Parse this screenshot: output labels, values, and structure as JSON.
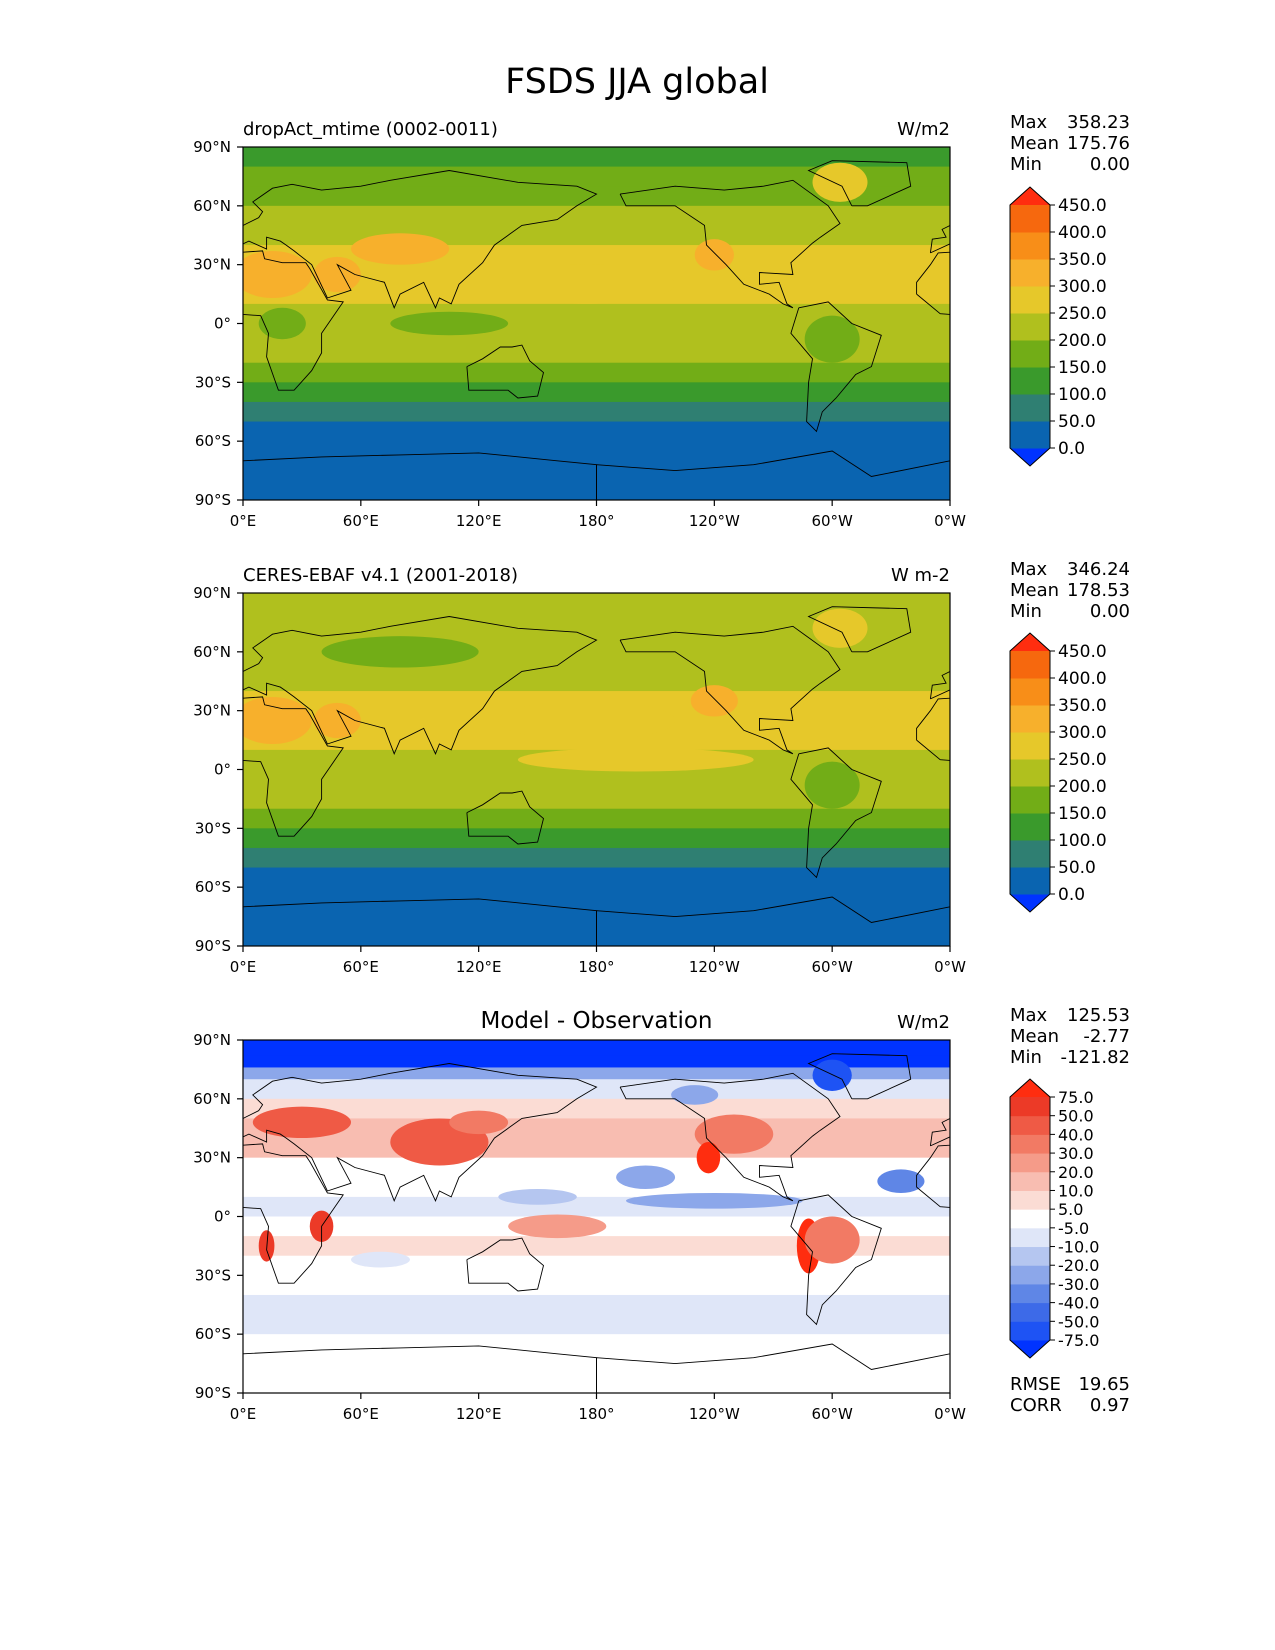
{
  "figure": {
    "title": "FSDS JJA global"
  },
  "chart_data": [
    {
      "type": "heatmap",
      "title": "dropAct_mtime (0002-0011)",
      "units": "W/m2",
      "xlim": [
        0,
        360
      ],
      "ylim": [
        -90,
        90
      ],
      "x_ticks": [
        "0°E",
        "60°E",
        "120°E",
        "180°",
        "120°W",
        "60°W",
        "0°W"
      ],
      "y_ticks": [
        "90°N",
        "60°N",
        "30°N",
        "0°",
        "30°S",
        "60°S",
        "90°S"
      ],
      "stats": [
        {
          "label": "Max",
          "value": "358.23"
        },
        {
          "label": "Mean",
          "value": "175.76"
        },
        {
          "label": "Min",
          "value": "0.00"
        }
      ],
      "colorbar": {
        "levels": [
          "0.0",
          "50.0",
          "100.0",
          "150.0",
          "200.0",
          "250.0",
          "300.0",
          "350.0",
          "400.0",
          "450.0"
        ],
        "colors": [
          "#0033ff",
          "#0a64b0",
          "#2f7f72",
          "#3a9a2c",
          "#72ad17",
          "#b0c01e",
          "#e6c82a",
          "#f7b02c",
          "#f88e18",
          "#f6680e",
          "#ff2d0f"
        ]
      },
      "zonal_mean": [
        {
          "lat": 90,
          "value": 140
        },
        {
          "lat": 80,
          "value": 150
        },
        {
          "lat": 70,
          "value": 170
        },
        {
          "lat": 60,
          "value": 200
        },
        {
          "lat": 50,
          "value": 240
        },
        {
          "lat": 40,
          "value": 270
        },
        {
          "lat": 30,
          "value": 280
        },
        {
          "lat": 20,
          "value": 270
        },
        {
          "lat": 10,
          "value": 230
        },
        {
          "lat": 0,
          "value": 210
        },
        {
          "lat": -10,
          "value": 205
        },
        {
          "lat": -20,
          "value": 180
        },
        {
          "lat": -30,
          "value": 140
        },
        {
          "lat": -40,
          "value": 90
        },
        {
          "lat": -50,
          "value": 40
        },
        {
          "lat": -60,
          "value": 15
        },
        {
          "lat": -70,
          "value": 10
        },
        {
          "lat": -80,
          "value": 2
        },
        {
          "lat": -90,
          "value": 0
        }
      ],
      "anomalies": [
        {
          "lon": 15,
          "lat": 25,
          "rx": 20,
          "ry": 12,
          "value": 330
        },
        {
          "lon": 48,
          "lat": 25,
          "rx": 12,
          "ry": 9,
          "value": 320
        },
        {
          "lon": 80,
          "lat": 38,
          "rx": 25,
          "ry": 8,
          "value": 330
        },
        {
          "lon": 240,
          "lat": 35,
          "rx": 10,
          "ry": 8,
          "value": 330
        },
        {
          "lon": 304,
          "lat": 72,
          "rx": 14,
          "ry": 10,
          "value": 280
        },
        {
          "lon": 175,
          "lat": 20,
          "rx": 45,
          "ry": 10,
          "value": 275
        },
        {
          "lon": 290,
          "lat": 28,
          "rx": 40,
          "ry": 10,
          "value": 275
        },
        {
          "lon": 300,
          "lat": -8,
          "rx": 14,
          "ry": 12,
          "value": 180
        },
        {
          "lon": 20,
          "lat": 0,
          "rx": 12,
          "ry": 8,
          "value": 170
        },
        {
          "lon": 105,
          "lat": 0,
          "rx": 30,
          "ry": 6,
          "value": 175
        }
      ]
    },
    {
      "type": "heatmap",
      "title": "CERES-EBAF v4.1 (2001-2018)",
      "units": "W m-2",
      "xlim": [
        0,
        360
      ],
      "ylim": [
        -90,
        90
      ],
      "x_ticks": [
        "0°E",
        "60°E",
        "120°E",
        "180°",
        "120°W",
        "60°W",
        "0°W"
      ],
      "y_ticks": [
        "90°N",
        "60°N",
        "30°N",
        "0°",
        "30°S",
        "60°S",
        "90°S"
      ],
      "stats": [
        {
          "label": "Max",
          "value": "346.24"
        },
        {
          "label": "Mean",
          "value": "178.53"
        },
        {
          "label": "Min",
          "value": "0.00"
        }
      ],
      "colorbar": {
        "levels": [
          "0.0",
          "50.0",
          "100.0",
          "150.0",
          "200.0",
          "250.0",
          "300.0",
          "350.0",
          "400.0",
          "450.0"
        ],
        "colors": [
          "#0033ff",
          "#0a64b0",
          "#2f7f72",
          "#3a9a2c",
          "#72ad17",
          "#b0c01e",
          "#e6c82a",
          "#f7b02c",
          "#f88e18",
          "#f6680e",
          "#ff2d0f"
        ]
      },
      "zonal_mean": [
        {
          "lat": 90,
          "value": 230
        },
        {
          "lat": 80,
          "value": 225
        },
        {
          "lat": 70,
          "value": 210
        },
        {
          "lat": 60,
          "value": 205
        },
        {
          "lat": 50,
          "value": 220
        },
        {
          "lat": 40,
          "value": 265
        },
        {
          "lat": 30,
          "value": 275
        },
        {
          "lat": 20,
          "value": 260
        },
        {
          "lat": 10,
          "value": 225
        },
        {
          "lat": 0,
          "value": 215
        },
        {
          "lat": -10,
          "value": 210
        },
        {
          "lat": -20,
          "value": 185
        },
        {
          "lat": -30,
          "value": 145
        },
        {
          "lat": -40,
          "value": 95
        },
        {
          "lat": -50,
          "value": 40
        },
        {
          "lat": -60,
          "value": 15
        },
        {
          "lat": -70,
          "value": 10
        },
        {
          "lat": -80,
          "value": 2
        },
        {
          "lat": -90,
          "value": 0
        }
      ],
      "anomalies": [
        {
          "lon": 15,
          "lat": 25,
          "rx": 20,
          "ry": 12,
          "value": 320
        },
        {
          "lon": 48,
          "lat": 25,
          "rx": 12,
          "ry": 9,
          "value": 310
        },
        {
          "lon": 304,
          "lat": 72,
          "rx": 14,
          "ry": 10,
          "value": 290
        },
        {
          "lon": 175,
          "lat": 25,
          "rx": 45,
          "ry": 10,
          "value": 275
        },
        {
          "lon": 290,
          "lat": 28,
          "rx": 40,
          "ry": 10,
          "value": 280
        },
        {
          "lon": 240,
          "lat": 35,
          "rx": 12,
          "ry": 8,
          "value": 305
        },
        {
          "lon": 80,
          "lat": 60,
          "rx": 40,
          "ry": 8,
          "value": 190
        },
        {
          "lon": 200,
          "lat": 5,
          "rx": 60,
          "ry": 6,
          "value": 260
        },
        {
          "lon": 300,
          "lat": -8,
          "rx": 14,
          "ry": 12,
          "value": 180
        }
      ]
    },
    {
      "type": "heatmap",
      "title": "Model - Observation",
      "units": "W/m2",
      "xlim": [
        0,
        360
      ],
      "ylim": [
        -90,
        90
      ],
      "x_ticks": [
        "0°E",
        "60°E",
        "120°E",
        "180°",
        "120°W",
        "60°W",
        "0°W"
      ],
      "y_ticks": [
        "90°N",
        "60°N",
        "30°N",
        "0°",
        "30°S",
        "60°S",
        "90°S"
      ],
      "stats": [
        {
          "label": "Max",
          "value": "125.53"
        },
        {
          "label": "Mean",
          "value": "-2.77"
        },
        {
          "label": "Min",
          "value": "-121.82"
        }
      ],
      "extra_stats": [
        {
          "label": "RMSE",
          "value": "19.65"
        },
        {
          "label": "CORR",
          "value": "0.97"
        }
      ],
      "colorbar": {
        "levels": [
          "-75.0",
          "-50.0",
          "-40.0",
          "-30.0",
          "-20.0",
          "-10.0",
          "-5.0",
          "5.0",
          "10.0",
          "20.0",
          "30.0",
          "40.0",
          "50.0",
          "75.0"
        ],
        "colors": [
          "#0033ff",
          "#1e53f4",
          "#3d6ae8",
          "#5f86e6",
          "#8ca7ea",
          "#b5c6f0",
          "#dfe6f8",
          "#ffffff",
          "#fbdcd4",
          "#f8bdb1",
          "#f59b89",
          "#f27a64",
          "#ef5a45",
          "#ec3a27",
          "#ff2d0f"
        ]
      },
      "zonal_mean": [
        {
          "lat": 90,
          "value": -90
        },
        {
          "lat": 82,
          "value": -80
        },
        {
          "lat": 76,
          "value": -25
        },
        {
          "lat": 70,
          "value": -8
        },
        {
          "lat": 60,
          "value": 8
        },
        {
          "lat": 50,
          "value": 15
        },
        {
          "lat": 40,
          "value": 12
        },
        {
          "lat": 30,
          "value": 4
        },
        {
          "lat": 20,
          "value": 0
        },
        {
          "lat": 10,
          "value": -6
        },
        {
          "lat": 0,
          "value": -3
        },
        {
          "lat": -10,
          "value": 6
        },
        {
          "lat": -20,
          "value": 2
        },
        {
          "lat": -30,
          "value": 0
        },
        {
          "lat": -40,
          "value": -9
        },
        {
          "lat": -50,
          "value": -6
        },
        {
          "lat": -60,
          "value": 0
        },
        {
          "lat": -90,
          "value": 0
        }
      ],
      "anomalies": [
        {
          "lon": 30,
          "lat": 48,
          "rx": 25,
          "ry": 8,
          "value": 45
        },
        {
          "lon": 100,
          "lat": 38,
          "rx": 25,
          "ry": 12,
          "value": 45
        },
        {
          "lon": 120,
          "lat": 48,
          "rx": 15,
          "ry": 6,
          "value": 35
        },
        {
          "lon": 250,
          "lat": 42,
          "rx": 20,
          "ry": 10,
          "value": 35
        },
        {
          "lon": 237,
          "lat": 30,
          "rx": 6,
          "ry": 8,
          "value": 80
        },
        {
          "lon": 288,
          "lat": -15,
          "rx": 6,
          "ry": 14,
          "value": 80
        },
        {
          "lon": 300,
          "lat": -12,
          "rx": 14,
          "ry": 12,
          "value": 30
        },
        {
          "lon": 40,
          "lat": -5,
          "rx": 6,
          "ry": 8,
          "value": 55
        },
        {
          "lon": 12,
          "lat": -15,
          "rx": 4,
          "ry": 8,
          "value": 55
        },
        {
          "lon": 160,
          "lat": -5,
          "rx": 25,
          "ry": 6,
          "value": 25
        },
        {
          "lon": 150,
          "lat": 10,
          "rx": 20,
          "ry": 4,
          "value": -15
        },
        {
          "lon": 240,
          "lat": 8,
          "rx": 45,
          "ry": 4,
          "value": -25
        },
        {
          "lon": 335,
          "lat": 18,
          "rx": 12,
          "ry": 6,
          "value": -35
        },
        {
          "lon": 205,
          "lat": 20,
          "rx": 15,
          "ry": 6,
          "value": -25
        },
        {
          "lon": 70,
          "lat": -22,
          "rx": 15,
          "ry": 4,
          "value": -10
        },
        {
          "lon": 300,
          "lat": 72,
          "rx": 10,
          "ry": 8,
          "value": -60
        },
        {
          "lon": 230,
          "lat": 62,
          "rx": 12,
          "ry": 5,
          "value": -30
        }
      ]
    }
  ],
  "continents": [
    [
      [
        -17,
        15
      ],
      [
        -17,
        21
      ],
      [
        -10,
        30
      ],
      [
        -6,
        36
      ],
      [
        10,
        37
      ],
      [
        11,
        33
      ],
      [
        20,
        31
      ],
      [
        32,
        31
      ],
      [
        34,
        28
      ],
      [
        43,
        12
      ],
      [
        51,
        11
      ],
      [
        40,
        -5
      ],
      [
        40,
        -15
      ],
      [
        35,
        -24
      ],
      [
        26,
        -34
      ],
      [
        18,
        -34
      ],
      [
        12,
        -17
      ],
      [
        13,
        -5
      ],
      [
        9,
        4
      ],
      [
        -5,
        5
      ],
      [
        -17,
        15
      ]
    ],
    [
      [
        -10,
        36
      ],
      [
        -9,
        43
      ],
      [
        -2,
        44
      ],
      [
        -4,
        48
      ],
      [
        2,
        51
      ],
      [
        8,
        54
      ],
      [
        10,
        57
      ],
      [
        5,
        62
      ],
      [
        15,
        69
      ],
      [
        25,
        71
      ],
      [
        40,
        68
      ],
      [
        60,
        70
      ],
      [
        75,
        73
      ],
      [
        105,
        78
      ],
      [
        140,
        72
      ],
      [
        170,
        70
      ],
      [
        180,
        66
      ],
      [
        170,
        60
      ],
      [
        160,
        53
      ],
      [
        142,
        50
      ],
      [
        128,
        40
      ],
      [
        122,
        31
      ],
      [
        110,
        20
      ],
      [
        106,
        10
      ],
      [
        100,
        13
      ],
      [
        98,
        8
      ],
      [
        92,
        21
      ],
      [
        80,
        15
      ],
      [
        77,
        8
      ],
      [
        72,
        21
      ],
      [
        57,
        25
      ],
      [
        48,
        30
      ],
      [
        55,
        17
      ],
      [
        43,
        13
      ],
      [
        35,
        30
      ],
      [
        26,
        37
      ],
      [
        22,
        40
      ],
      [
        19,
        42
      ],
      [
        12,
        44
      ],
      [
        12,
        38
      ],
      [
        3,
        42
      ],
      [
        -10,
        36
      ]
    ],
    [
      [
        -168,
        66
      ],
      [
        -140,
        70
      ],
      [
        -115,
        68
      ],
      [
        -95,
        70
      ],
      [
        -80,
        73
      ],
      [
        -62,
        60
      ],
      [
        -56,
        51
      ],
      [
        -66,
        44
      ],
      [
        -70,
        41
      ],
      [
        -81,
        31
      ],
      [
        -80,
        25
      ],
      [
        -97,
        26
      ],
      [
        -97,
        20
      ],
      [
        -87,
        21
      ],
      [
        -83,
        10
      ],
      [
        -80,
        8
      ],
      [
        -85,
        10
      ],
      [
        -92,
        15
      ],
      [
        -105,
        20
      ],
      [
        -114,
        30
      ],
      [
        -124,
        40
      ],
      [
        -125,
        50
      ],
      [
        -140,
        60
      ],
      [
        -165,
        60
      ],
      [
        -168,
        66
      ]
    ],
    [
      [
        -77,
        8
      ],
      [
        -62,
        11
      ],
      [
        -50,
        0
      ],
      [
        -35,
        -6
      ],
      [
        -40,
        -22
      ],
      [
        -48,
        -26
      ],
      [
        -58,
        -38
      ],
      [
        -65,
        -45
      ],
      [
        -68,
        -55
      ],
      [
        -73,
        -50
      ],
      [
        -72,
        -30
      ],
      [
        -70,
        -18
      ],
      [
        -81,
        -5
      ],
      [
        -77,
        8
      ]
    ],
    [
      [
        114,
        -22
      ],
      [
        122,
        -18
      ],
      [
        131,
        -12
      ],
      [
        137,
        -12
      ],
      [
        142,
        -11
      ],
      [
        146,
        -19
      ],
      [
        153,
        -25
      ],
      [
        150,
        -37
      ],
      [
        140,
        -38
      ],
      [
        135,
        -34
      ],
      [
        123,
        -34
      ],
      [
        115,
        -34
      ],
      [
        114,
        -22
      ]
    ],
    [
      [
        -50,
        60
      ],
      [
        -42,
        60
      ],
      [
        -20,
        70
      ],
      [
        -22,
        82
      ],
      [
        -60,
        83
      ],
      [
        -72,
        78
      ],
      [
        -55,
        70
      ],
      [
        -50,
        60
      ]
    ],
    [
      [
        -180,
        -72
      ],
      [
        -140,
        -75
      ],
      [
        -100,
        -72
      ],
      [
        -60,
        -65
      ],
      [
        -40,
        -78
      ],
      [
        0,
        -70
      ],
      [
        40,
        -68
      ],
      [
        80,
        -67
      ],
      [
        120,
        -66
      ],
      [
        160,
        -70
      ],
      [
        180,
        -72
      ],
      [
        180,
        -90
      ],
      [
        -180,
        -90
      ],
      [
        -180,
        -72
      ]
    ]
  ]
}
